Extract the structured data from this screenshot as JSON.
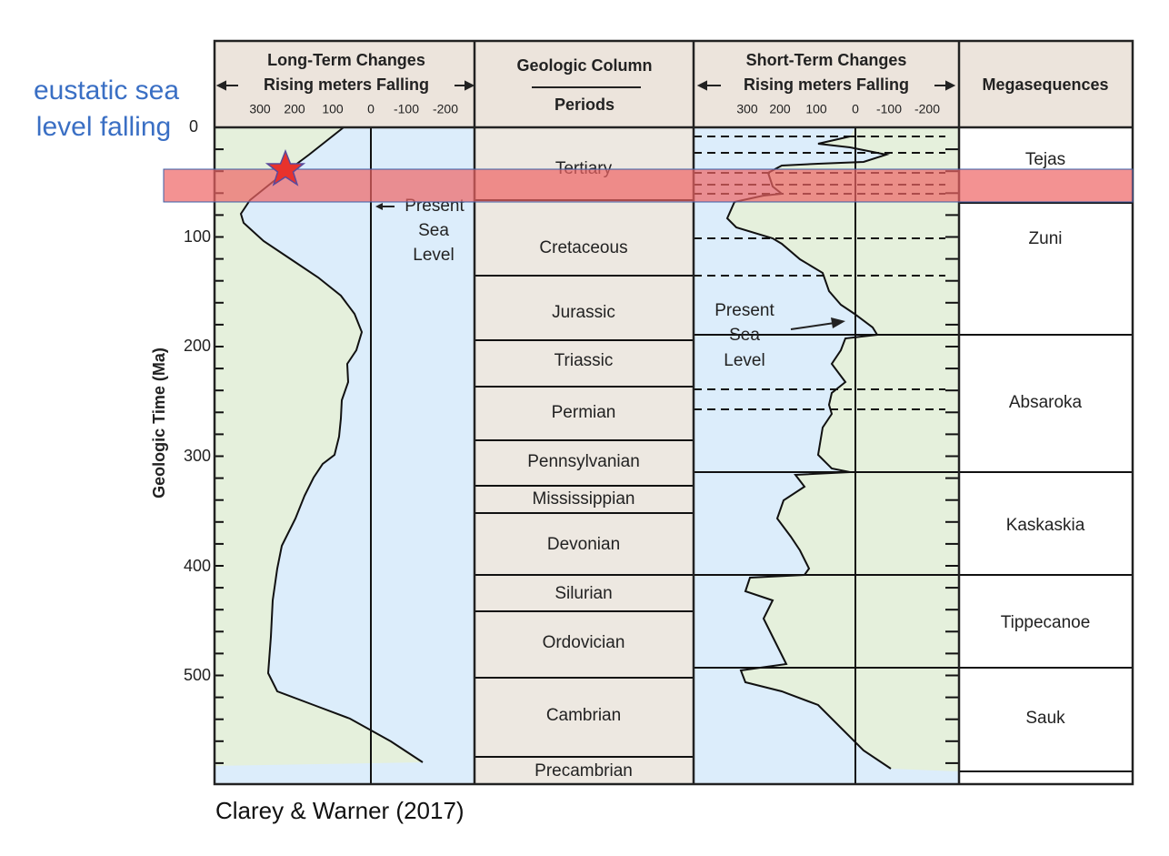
{
  "annotation": {
    "lines": [
      "eustatic sea",
      "level falling"
    ]
  },
  "long_term": {
    "title": "Long-Term Changes",
    "subtitle": "Rising meters Falling",
    "ticks": [
      "300",
      "200",
      "100",
      "0",
      "-100",
      "-200"
    ],
    "note": [
      "Present",
      "Sea",
      "Level"
    ]
  },
  "geologic_column": {
    "title": "Geologic Column",
    "subtitle": "Periods",
    "periods": [
      "Tertiary",
      "Cretaceous",
      "Jurassic",
      "Triassic",
      "Permian",
      "Pennsylvanian",
      "Mississippian",
      "Devonian",
      "Silurian",
      "Ordovician",
      "Cambrian",
      "Precambrian"
    ]
  },
  "short_term": {
    "title": "Short-Term Changes",
    "subtitle": "Rising meters Falling",
    "ticks": [
      "300",
      "200",
      "100",
      "0",
      "-100",
      "-200"
    ],
    "note": [
      "Present",
      "Sea",
      "Level"
    ]
  },
  "megasequences": {
    "title": "Megasequences",
    "names": [
      "Tejas",
      "Zuni",
      "Absaroka",
      "Kaskaskia",
      "Tippecanoe",
      "Sauk"
    ]
  },
  "time_axis": {
    "title": "Geologic Time (Ma)",
    "ticks": [
      "0",
      "100",
      "200",
      "300",
      "400",
      "500"
    ]
  },
  "caption": "Clarey & Warner (2017)"
}
